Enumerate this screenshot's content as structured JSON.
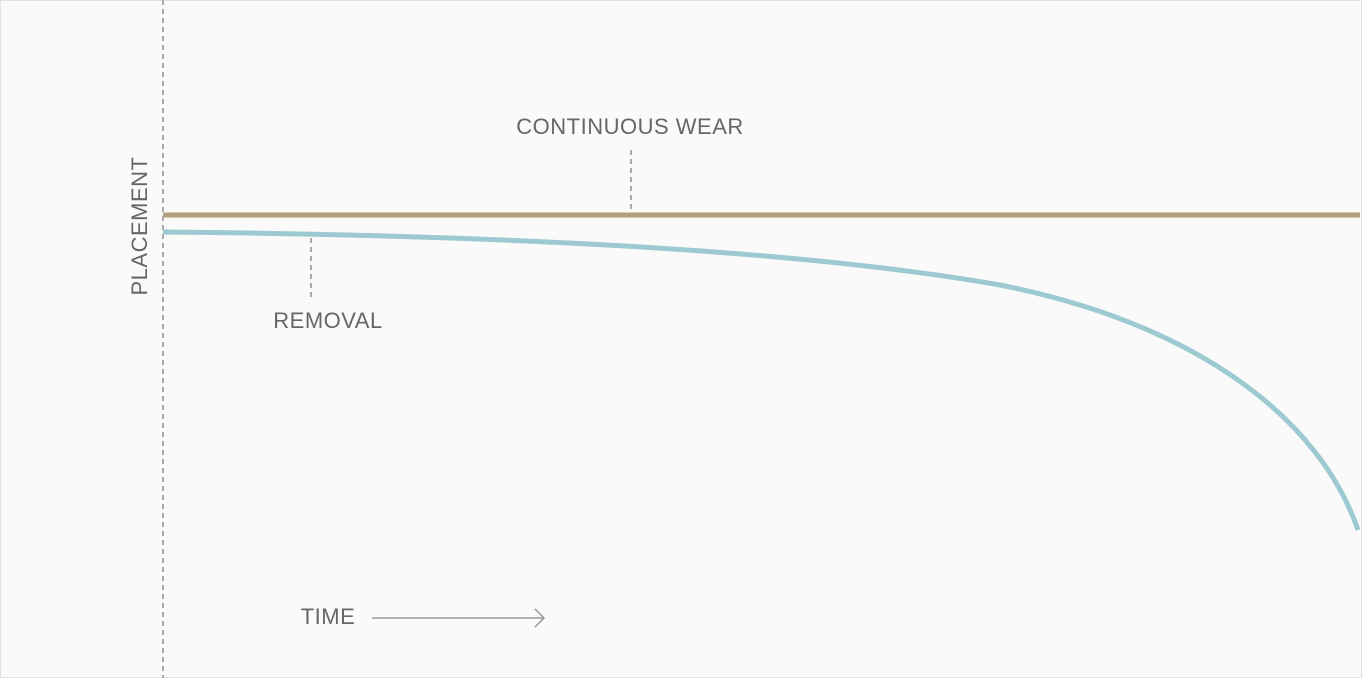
{
  "labels": {
    "continuous_wear": "CONTINUOUS WEAR",
    "removal": "REMOVAL",
    "placement": "PLACEMENT",
    "time": "TIME"
  }
}
